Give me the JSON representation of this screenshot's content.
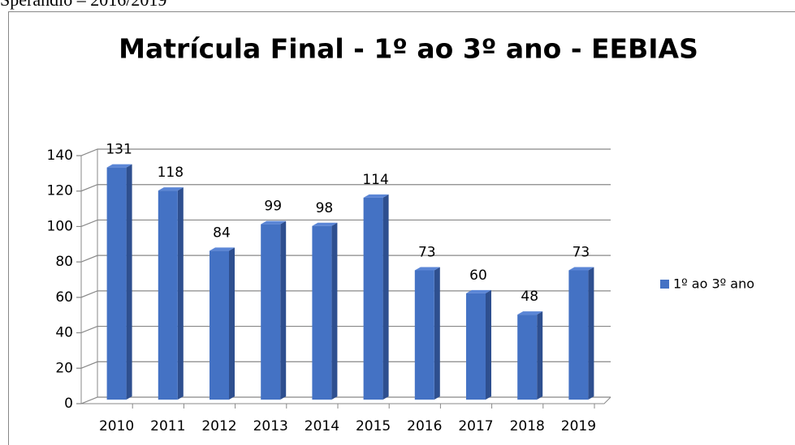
{
  "caption": "Sperandio – 2016/2019",
  "chart_data": {
    "type": "bar",
    "title": "Matrícula Final - 1º ao 3º ano - EEBIAS",
    "categories": [
      "2010",
      "2011",
      "2012",
      "2013",
      "2014",
      "2015",
      "2016",
      "2017",
      "2018",
      "2019"
    ],
    "series": [
      {
        "name": "1º ao 3º ano",
        "color": "#4472c4",
        "values": [
          131,
          118,
          84,
          99,
          98,
          114,
          73,
          60,
          48,
          73
        ]
      }
    ],
    "ylim": [
      0,
      140
    ],
    "yticks": [
      0,
      20,
      40,
      60,
      80,
      100,
      120,
      140
    ],
    "grid": true,
    "legend": "right",
    "data_labels": true
  }
}
